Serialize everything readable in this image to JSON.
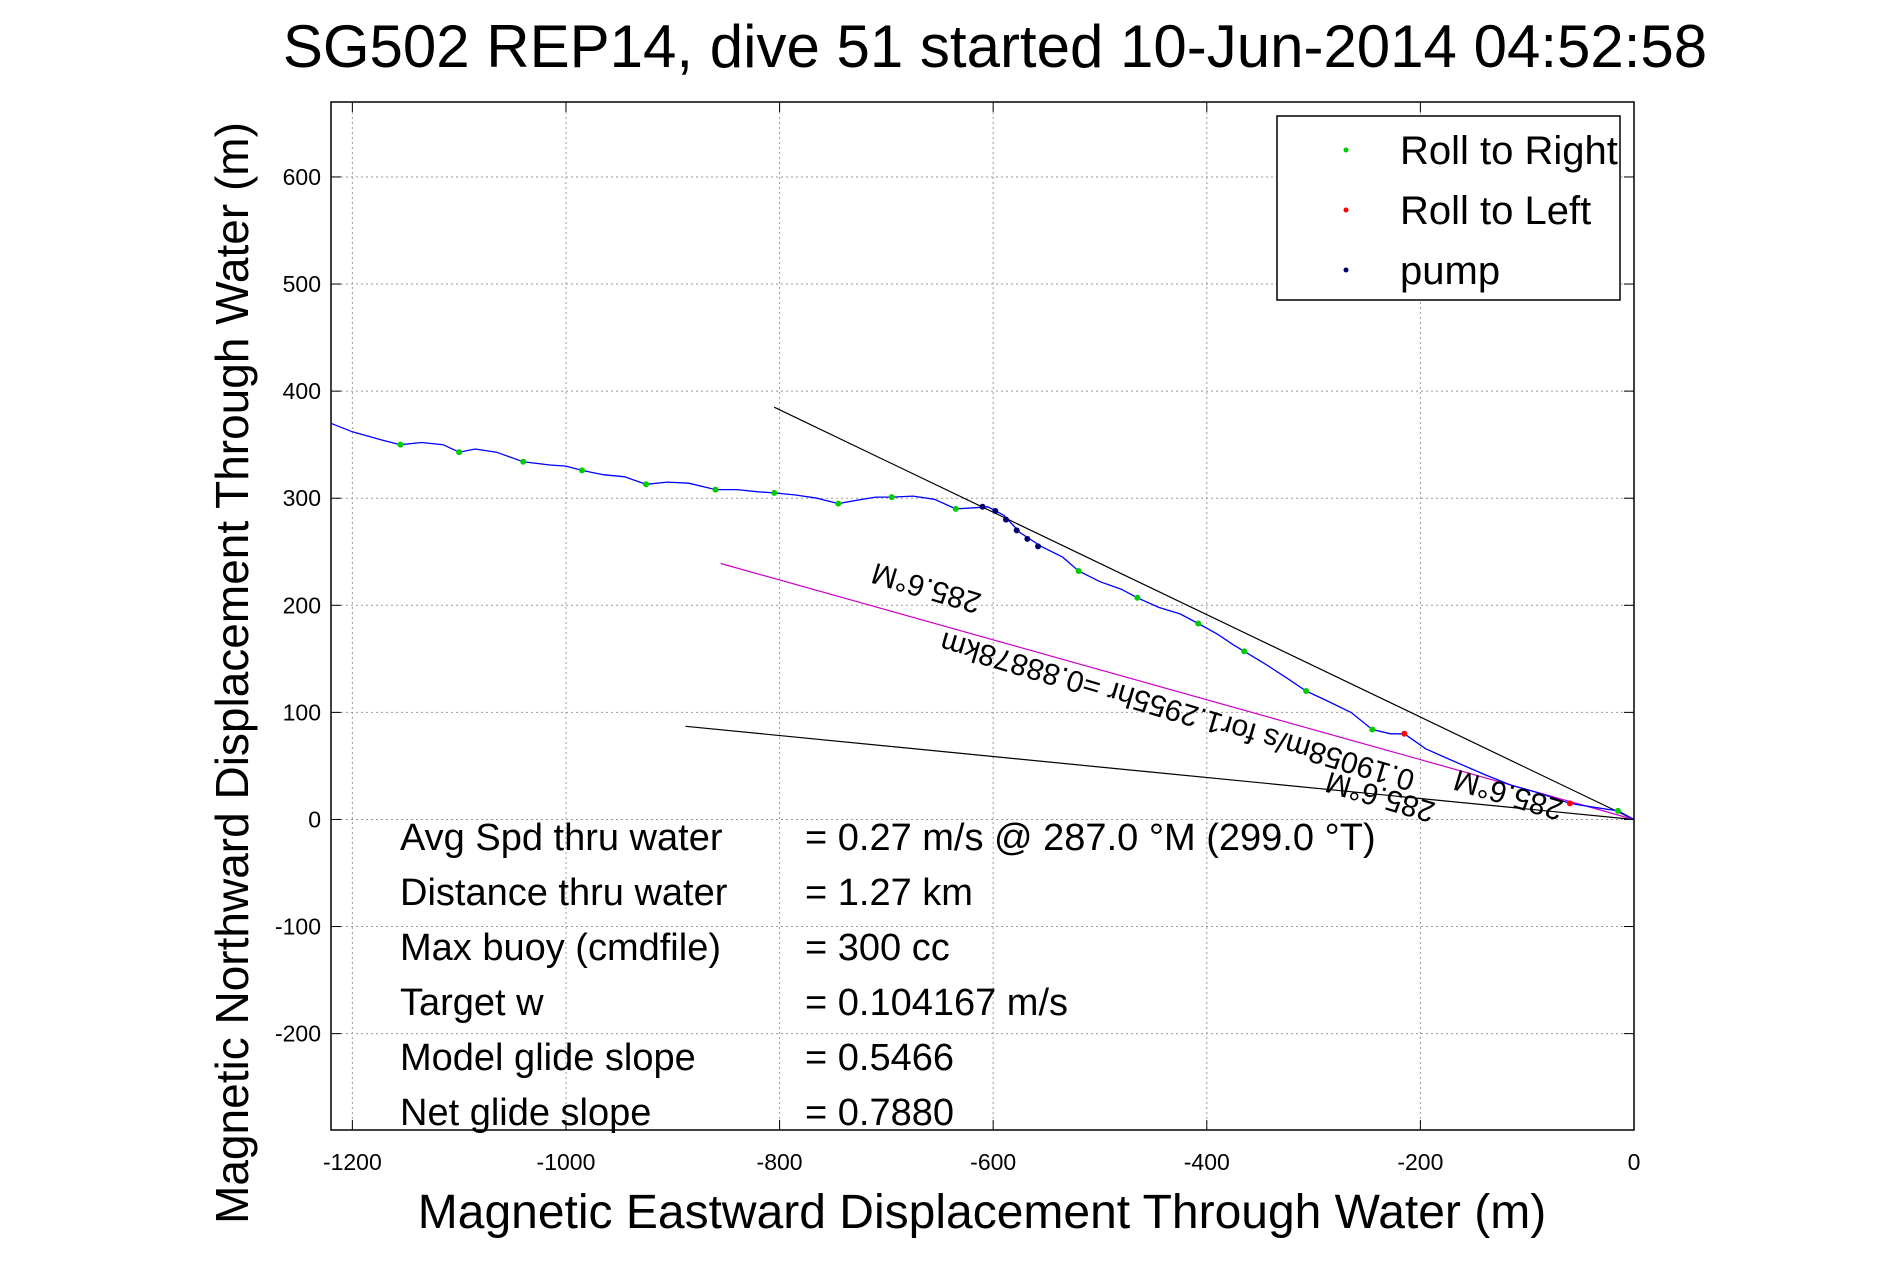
{
  "chart_data": {
    "type": "line",
    "title": "SG502 REP14, dive 51 started 10-Jun-2014 04:52:58",
    "xlabel": "Magnetic Eastward Displacement Through Water (m)",
    "ylabel": "Magnetic Northward Displacement Through Water (m)",
    "xlim": [
      -1220,
      0
    ],
    "ylim": [
      -290,
      670
    ],
    "xticks": [
      -1200,
      -1000,
      -800,
      -600,
      -400,
      -200,
      0
    ],
    "yticks": [
      -200,
      -100,
      0,
      100,
      200,
      300,
      400,
      500,
      600
    ],
    "grid": true,
    "legend_position": "top-right",
    "series": [
      {
        "name": "Roll to Right",
        "color": "#00cc00",
        "marker": "dot",
        "points": [
          [
            -1155,
            350
          ],
          [
            -1100,
            343
          ],
          [
            -1040,
            334
          ],
          [
            -985,
            326
          ],
          [
            -925,
            313
          ],
          [
            -860,
            308
          ],
          [
            -805,
            305
          ],
          [
            -745,
            295
          ],
          [
            -695,
            301
          ],
          [
            -635,
            290
          ],
          [
            -520,
            232
          ],
          [
            -465,
            207
          ],
          [
            -408,
            183
          ],
          [
            -365,
            157
          ],
          [
            -307,
            120
          ],
          [
            -245,
            84
          ],
          [
            -15,
            8
          ]
        ]
      },
      {
        "name": "Roll to Left",
        "color": "#ff0000",
        "marker": "dot",
        "points": [
          [
            -215,
            80
          ],
          [
            -60,
            15
          ]
        ]
      },
      {
        "name": "pump",
        "color": "#00006e",
        "marker": "dot",
        "points": [
          [
            -610,
            292
          ],
          [
            -598,
            288
          ],
          [
            -588,
            280
          ],
          [
            -578,
            270
          ],
          [
            -568,
            262
          ],
          [
            -558,
            255
          ]
        ]
      }
    ],
    "track": {
      "color": "#0000ff",
      "points": [
        [
          -1220,
          370
        ],
        [
          -1200,
          362
        ],
        [
          -1175,
          355
        ],
        [
          -1155,
          350
        ],
        [
          -1135,
          352
        ],
        [
          -1115,
          350
        ],
        [
          -1100,
          343
        ],
        [
          -1085,
          346
        ],
        [
          -1065,
          343
        ],
        [
          -1040,
          334
        ],
        [
          -1015,
          331
        ],
        [
          -1000,
          330
        ],
        [
          -985,
          326
        ],
        [
          -965,
          322
        ],
        [
          -945,
          320
        ],
        [
          -925,
          313
        ],
        [
          -905,
          315
        ],
        [
          -885,
          314
        ],
        [
          -860,
          308
        ],
        [
          -840,
          308
        ],
        [
          -820,
          306
        ],
        [
          -805,
          305
        ],
        [
          -785,
          303
        ],
        [
          -765,
          300
        ],
        [
          -745,
          295
        ],
        [
          -728,
          298
        ],
        [
          -710,
          301
        ],
        [
          -695,
          301
        ],
        [
          -675,
          302
        ],
        [
          -655,
          299
        ],
        [
          -635,
          290
        ],
        [
          -618,
          291
        ],
        [
          -605,
          292
        ],
        [
          -590,
          284
        ],
        [
          -575,
          268
        ],
        [
          -555,
          255
        ],
        [
          -535,
          245
        ],
        [
          -520,
          232
        ],
        [
          -500,
          222
        ],
        [
          -480,
          215
        ],
        [
          -465,
          207
        ],
        [
          -445,
          198
        ],
        [
          -425,
          192
        ],
        [
          -408,
          183
        ],
        [
          -390,
          173
        ],
        [
          -375,
          163
        ],
        [
          -365,
          157
        ],
        [
          -345,
          145
        ],
        [
          -325,
          132
        ],
        [
          -307,
          120
        ],
        [
          -290,
          112
        ],
        [
          -265,
          100
        ],
        [
          -245,
          84
        ],
        [
          -228,
          80
        ],
        [
          -215,
          80
        ],
        [
          -195,
          66
        ],
        [
          -170,
          55
        ],
        [
          -140,
          42
        ],
        [
          -115,
          32
        ],
        [
          -90,
          25
        ],
        [
          -60,
          15
        ],
        [
          -35,
          11
        ],
        [
          -15,
          8
        ],
        [
          0,
          0
        ]
      ]
    },
    "lines": [
      {
        "color": "#000000",
        "points": [
          [
            -805,
            385
          ],
          [
            0,
            0
          ]
        ]
      },
      {
        "color": "#000000",
        "points": [
          [
            -888,
            87
          ],
          [
            0,
            0
          ]
        ]
      },
      {
        "color": "#cc00cc",
        "points": [
          [
            -855,
            239
          ],
          [
            0,
            0
          ]
        ]
      }
    ],
    "rotated_labels": [
      {
        "text": "285.6°M",
        "x": -660,
        "y": 225
      },
      {
        "text": "0.19058m/s for1.2955hr =0.88878km",
        "x": -425,
        "y": 110
      },
      {
        "text": "285.6°M",
        "x": -235,
        "y": 30
      },
      {
        "text": "285.6°M",
        "x": -115,
        "y": 32
      }
    ],
    "info_rows": [
      {
        "label": "Avg Spd thru water",
        "value": "=  0.27 m/s @ 287.0 °M (299.0 °T)"
      },
      {
        "label": "Distance thru water",
        "value": "=  1.27 km"
      },
      {
        "label": "Max buoy (cmdfile)",
        "value": "= 300 cc"
      },
      {
        "label": "Target w",
        "value": "= 0.104167 m/s"
      },
      {
        "label": "Model glide slope",
        "value": "= 0.5466"
      },
      {
        "label": "Net glide slope",
        "value": "= 0.7880"
      }
    ]
  }
}
